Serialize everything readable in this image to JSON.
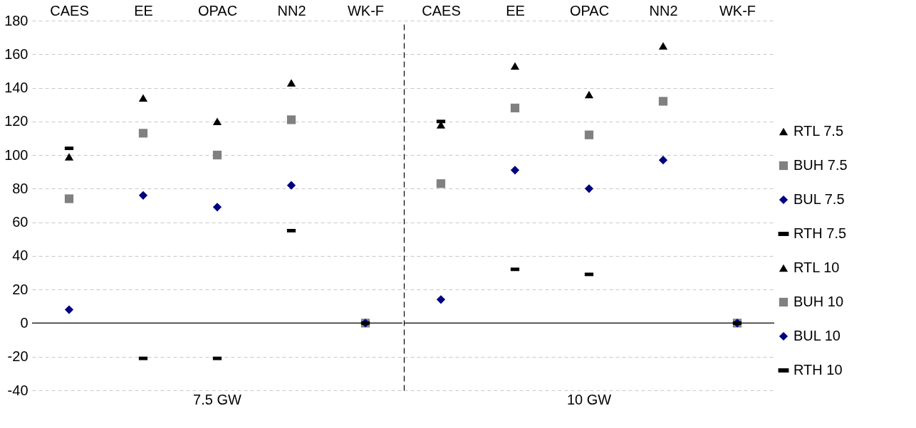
{
  "chart_data": [
    {
      "type": "scatter",
      "xlabel": "7.5 GW",
      "categories": [
        "CAES",
        "EE",
        "OPAC",
        "NN2",
        "WK-F"
      ],
      "ylim": [
        -40,
        180
      ],
      "yticks": [
        -40,
        -20,
        0,
        20,
        40,
        60,
        80,
        100,
        120,
        140,
        160,
        180
      ],
      "grid": "y",
      "legend": "right",
      "ref_lines": [
        {
          "axis": "y",
          "value": 0,
          "color": "#000000",
          "line_style": "solid"
        }
      ],
      "series": [
        {
          "name": "RTL 7.5",
          "color": "#000000",
          "marker": "triangle",
          "values": [
            99,
            134,
            120,
            143,
            null
          ]
        },
        {
          "name": "BUH 7.5",
          "color": "#808080",
          "marker": "square",
          "values": [
            74,
            113,
            100,
            121,
            0
          ]
        },
        {
          "name": "BUL 7.5",
          "color": "#000080",
          "marker": "diamond",
          "values": [
            8,
            76,
            69,
            82,
            0
          ]
        },
        {
          "name": "RTH 7.5",
          "color": "#000000",
          "values": [
            104,
            -21,
            -21,
            55,
            0
          ]
        }
      ]
    },
    {
      "type": "scatter",
      "xlabel": "10 GW",
      "categories": [
        "CAES",
        "EE",
        "OPAC",
        "NN2",
        "WK-F"
      ],
      "ylim": [
        -40,
        180
      ],
      "yticks": [
        -40,
        -20,
        0,
        20,
        40,
        60,
        80,
        100,
        120,
        140,
        160,
        180
      ],
      "grid": "y",
      "legend": "right",
      "tick_labels": "x",
      "ref_lines": [
        {
          "axis": "y",
          "value": 0,
          "color": "#000000",
          "line_style": "solid"
        }
      ],
      "series": [
        {
          "name": "RTL 10",
          "color": "#000000",
          "marker": "triangle",
          "values": [
            118,
            153,
            136,
            165,
            null
          ]
        },
        {
          "name": "BUH 10",
          "color": "#808080",
          "marker": "square",
          "values": [
            83,
            128,
            112,
            132,
            0
          ]
        },
        {
          "name": "BUL 10",
          "color": "#000080",
          "marker": "diamond",
          "values": [
            14,
            91,
            80,
            97,
            0
          ]
        },
        {
          "name": "RTH 10",
          "color": "#000000",
          "values": [
            120,
            32,
            29,
            null,
            0
          ]
        }
      ]
    }
  ]
}
